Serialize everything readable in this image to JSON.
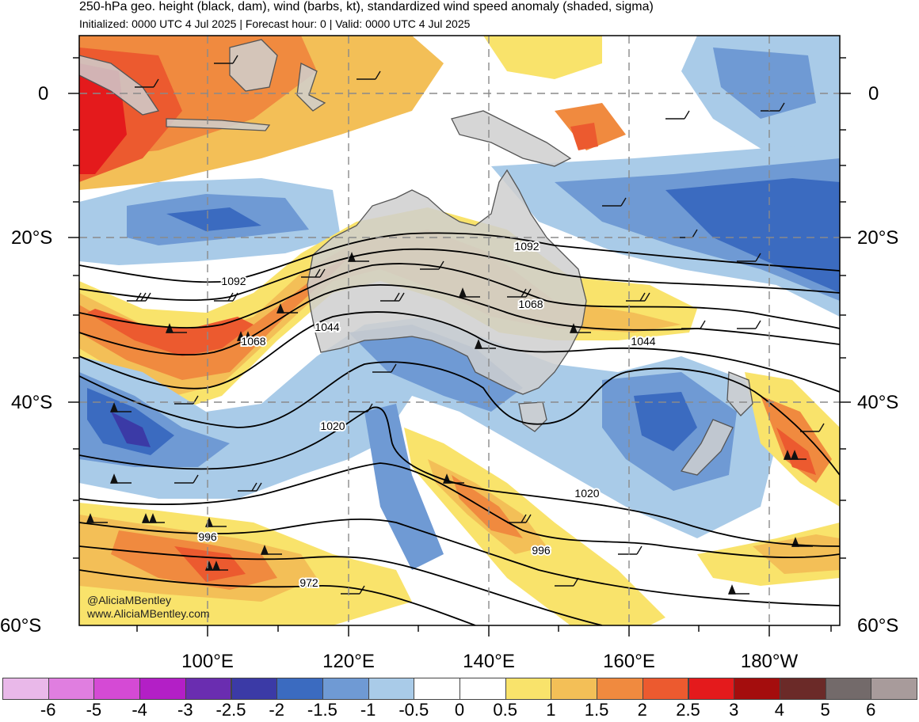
{
  "header": {
    "title": "250-hPa geo. height (black, dam), wind (barbs, kt), standardized wind speed anomaly (shaded, sigma)",
    "subtitle": "Initialized: 0000 UTC 4 Jul 2025 | Forecast hour: 0 | Valid: 0000 UTC 4 Jul 2025"
  },
  "map": {
    "lat_labels": [
      "0",
      "20°S",
      "40°S",
      "60°S"
    ],
    "lon_labels": [
      "100°E",
      "120°E",
      "140°E",
      "160°E",
      "180°W"
    ],
    "contour_labels": [
      "1092",
      "1092",
      "1068",
      "1068",
      "1044",
      "1044",
      "1020",
      "1020",
      "996",
      "996",
      "972"
    ],
    "land_color": "#cfcfcf",
    "coast_color": "#555555"
  },
  "colorbar": {
    "ticks": [
      "-6",
      "-5",
      "-4",
      "-3",
      "-2.5",
      "-2",
      "-1.5",
      "-1",
      "-0.5",
      "0",
      "0.5",
      "1",
      "1.5",
      "2",
      "2.5",
      "3",
      "4",
      "5",
      "6"
    ],
    "colors": [
      "#e9b8e9",
      "#e07ee0",
      "#d54ad5",
      "#b31fc6",
      "#6a2db0",
      "#3b3aa6",
      "#3b6bc0",
      "#6f9ad4",
      "#a9cbe8",
      "#ffffff",
      "#ffffff",
      "#f9e36b",
      "#f3bf57",
      "#f08a3f",
      "#ec5a2f",
      "#e41a1c",
      "#a40d0d",
      "#6b2a28",
      "#736a6a",
      "#a89b9b"
    ]
  },
  "credits": {
    "handle": "@AliciaMBentley",
    "site": "www.AliciaMBentley.com"
  }
}
